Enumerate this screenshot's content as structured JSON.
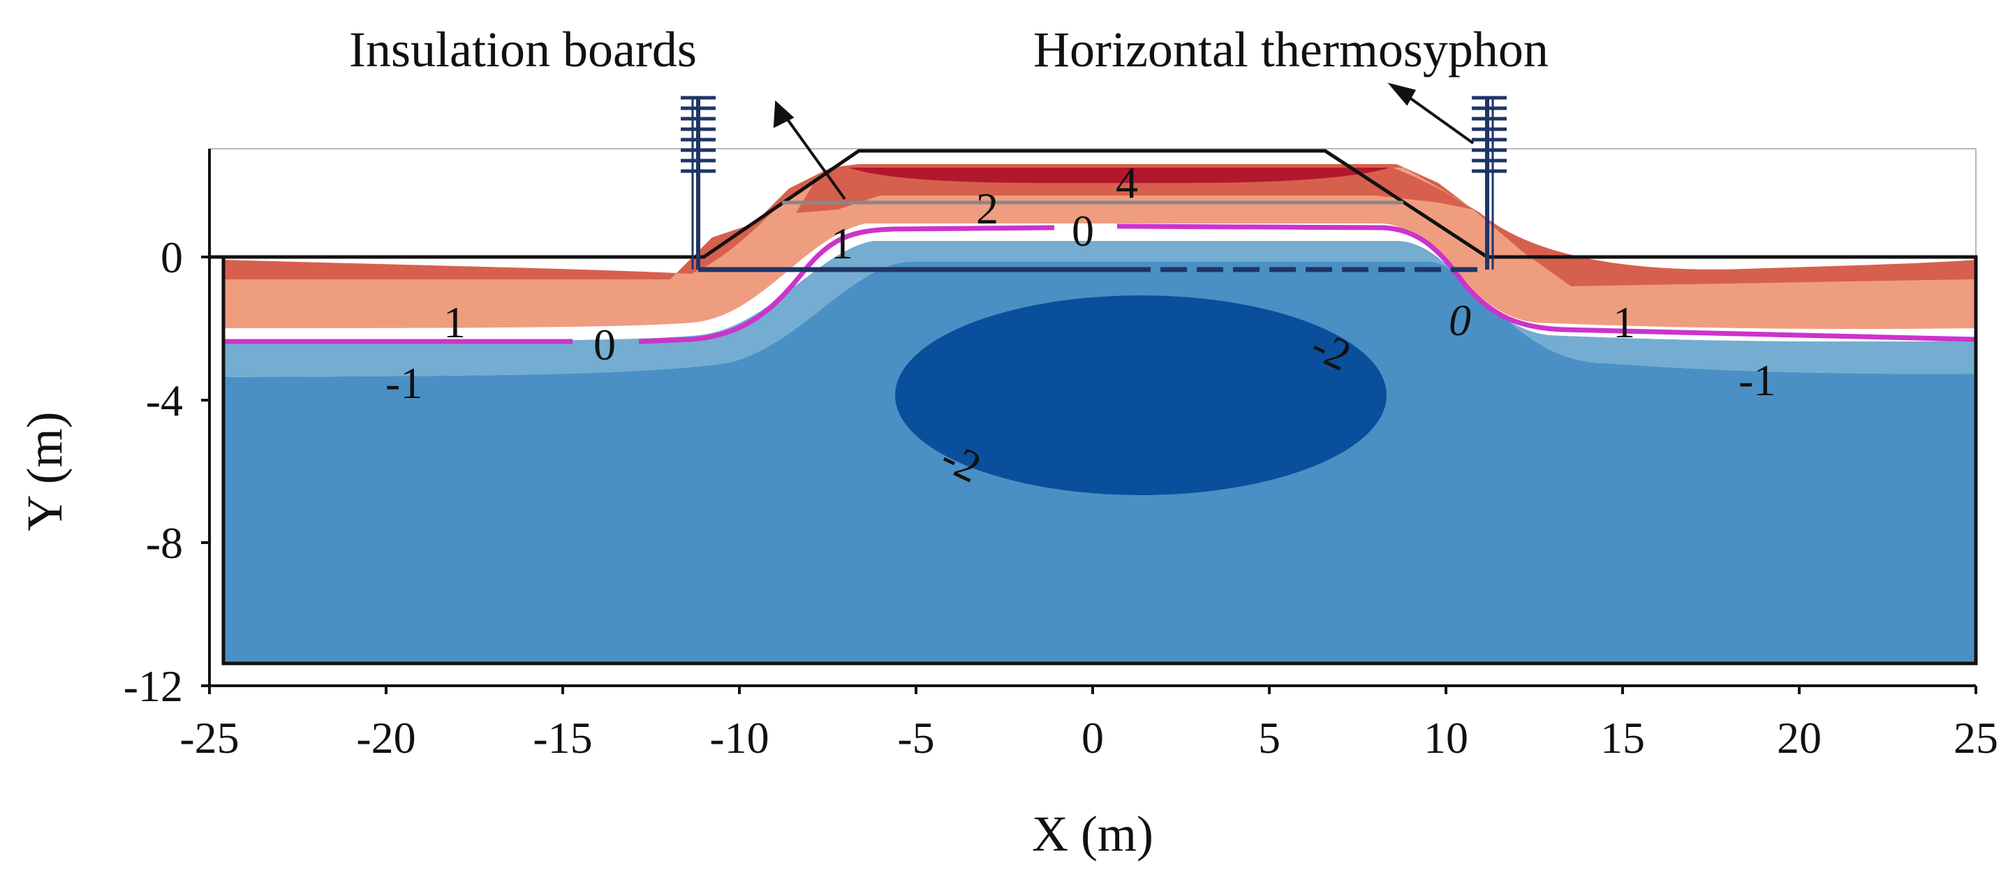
{
  "figure": {
    "annotations": {
      "insulation": "Insulation boards",
      "thermosyphon": "Horizontal thermosyphon"
    },
    "axes": {
      "x_title": "X (m)",
      "y_title": "Y (m)",
      "x_ticks": [
        "-25",
        "-20",
        "-15",
        "-10",
        "-5",
        "0",
        "5",
        "10",
        "15",
        "20",
        "25"
      ],
      "y_ticks": [
        "0",
        "-4",
        "-8",
        "-12"
      ],
      "x_range": [
        -25,
        25
      ],
      "y_range": [
        -12,
        3
      ]
    },
    "contour_labels": {
      "embankment_top": "4",
      "embankment_mid": "2",
      "slope_left": "1",
      "zero_center": "0",
      "left_one": "1",
      "left_zero": "0",
      "left_minus_one": "-1",
      "right_zero": "0",
      "right_one": "1",
      "right_minus_one": "-1",
      "core_right": "-2",
      "core_left": "-2"
    },
    "colors": {
      "warm_4": "#b2182b",
      "warm_2": "#d6604d",
      "warm_1": "#ef9d7f",
      "zero_band": "#ffffff",
      "cold_minus_1": "#74add1",
      "cold_minus_1_5": "#4a90c4",
      "cold_minus_2": "#0a4f9c",
      "zero_line": "#cc33cc",
      "structure": "#1f3566"
    }
  }
}
